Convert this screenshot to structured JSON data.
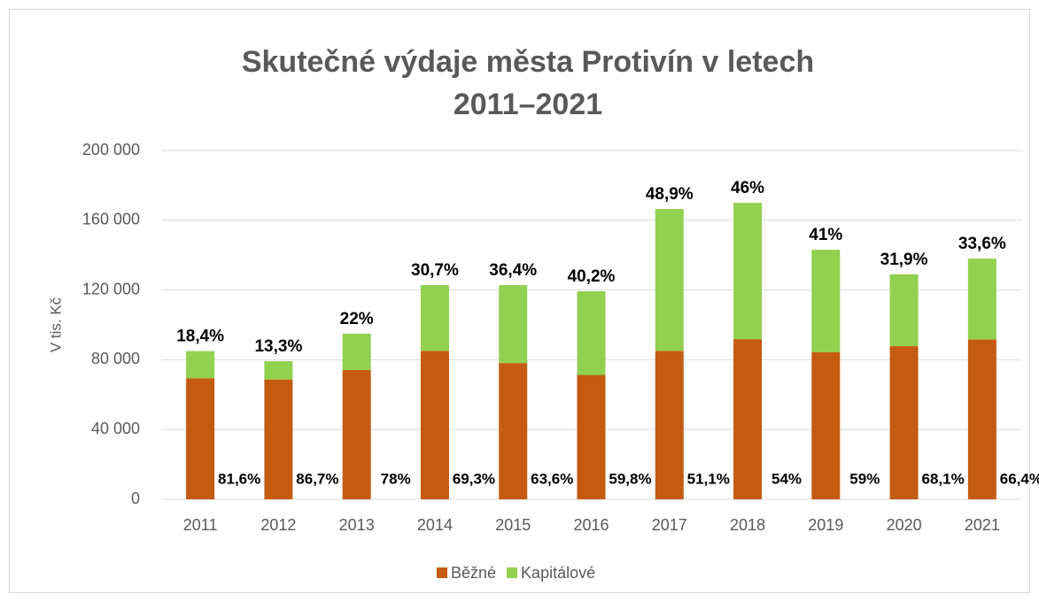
{
  "chart_data": {
    "type": "stacked_bar",
    "title": "Skutečné výdaje města Protivín v letech",
    "subtitle": "2011–2021",
    "y_label": "V tis. Kč",
    "categories": [
      "2011",
      "2012",
      "2013",
      "2014",
      "2015",
      "2016",
      "2017",
      "2018",
      "2019",
      "2020",
      "2021"
    ],
    "series": [
      {
        "name": "Běžné",
        "color": "#c55a11",
        "values": [
          69400,
          68700,
          74100,
          85100,
          78100,
          71300,
          85100,
          91800,
          84400,
          87800,
          91600
        ],
        "share_labels": [
          "81,6%",
          "86,7%",
          "78%",
          "69,3%",
          "63,6%",
          "59,8%",
          "51,1%",
          "54%",
          "59%",
          "68,1%",
          "66,4%"
        ]
      },
      {
        "name": "Kapitálové",
        "color": "#92d050",
        "values": [
          15600,
          10500,
          20900,
          37700,
          44700,
          48000,
          81400,
          78200,
          58700,
          41200,
          46400
        ],
        "share_labels": [
          "18,4%",
          "13,3%",
          "22%",
          "30,7%",
          "36,4%",
          "40,2%",
          "48,9%",
          "46%",
          "41%",
          "31,9%",
          "33,6%"
        ]
      }
    ],
    "ylim": [
      0,
      200000
    ],
    "yticks": [
      0,
      {
        "value": 40000,
        "label": "40 000"
      },
      {
        "value": 80000,
        "label": "80 000"
      },
      {
        "value": 120000,
        "label": "120 000"
      },
      {
        "value": 160000,
        "label": "160 000"
      },
      {
        "value": 200000,
        "label": "200 000"
      }
    ],
    "grid": true,
    "legend": "bottom"
  }
}
